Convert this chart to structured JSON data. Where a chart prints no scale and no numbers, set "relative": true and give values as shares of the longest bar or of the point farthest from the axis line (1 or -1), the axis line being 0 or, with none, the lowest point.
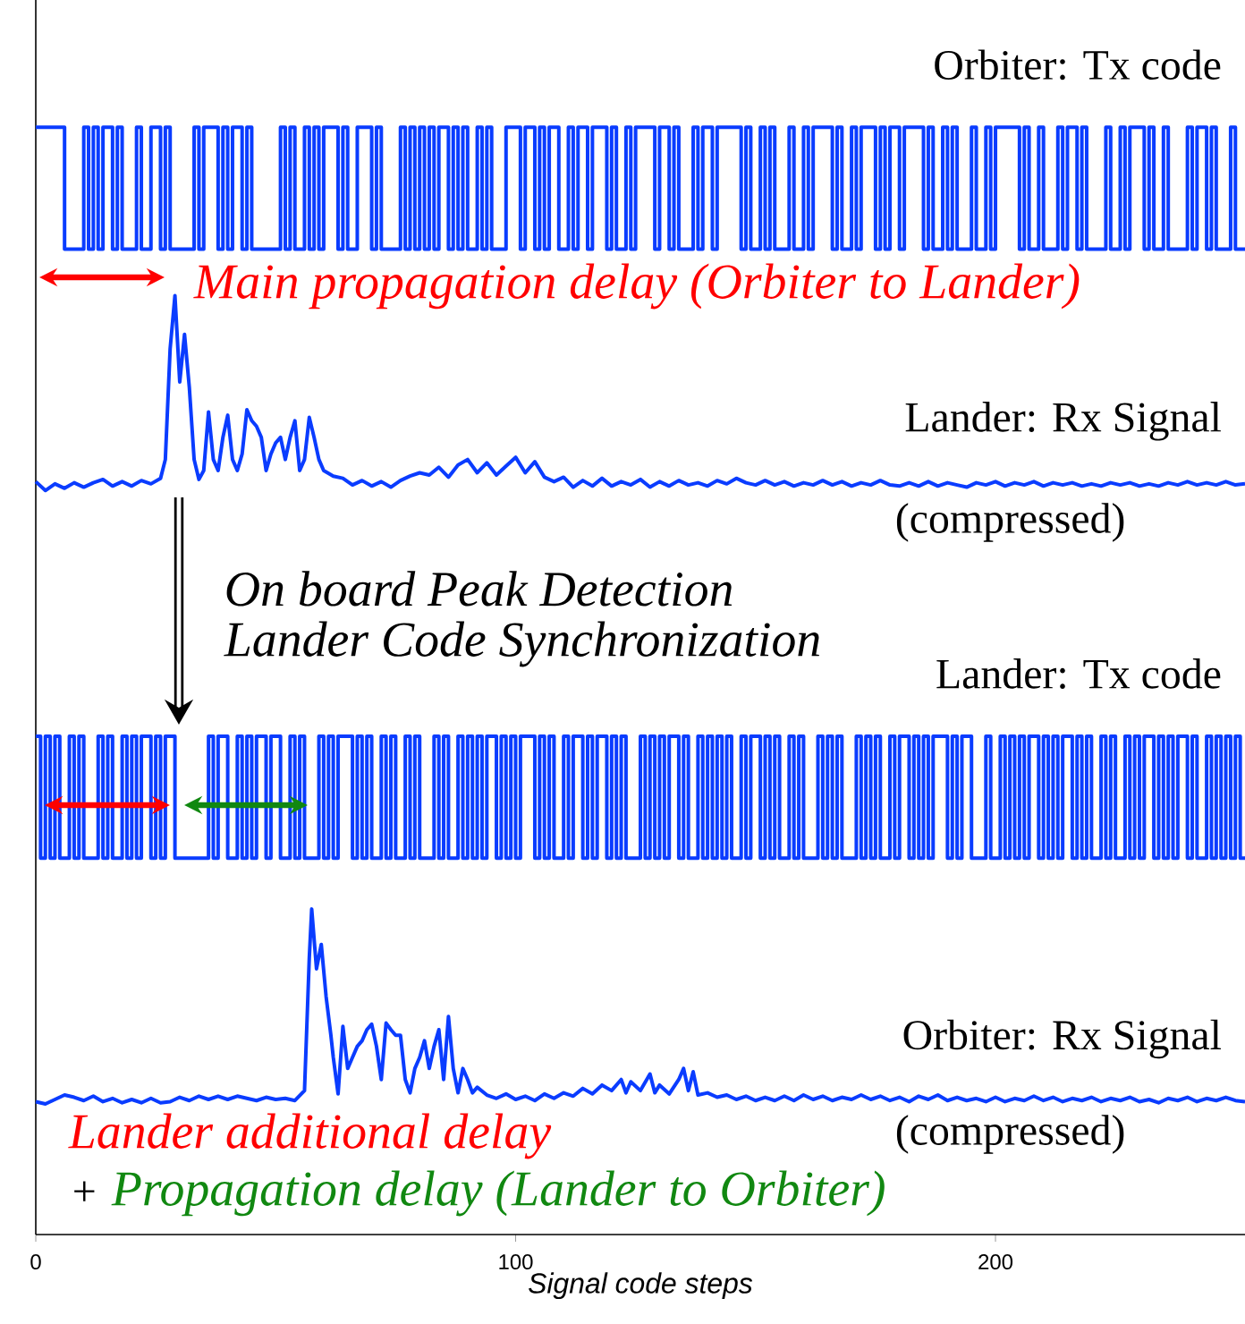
{
  "chart_data": {
    "type": "line",
    "relative": true,
    "xlabel": "Signal code steps",
    "xlim": [
      0,
      252
    ],
    "xticks": [
      0,
      100,
      200
    ],
    "marker": "none",
    "annotations": [
      "Main propagation delay (Orbiter to Lander)",
      "On board Peak Detection",
      "Lander Code Synchronization",
      "(compressed)",
      "(compressed)",
      "Lander additional delay",
      "+",
      "Propagation delay (Lander to Orbiter)"
    ],
    "series": [
      {
        "name": "Orbiter: Tx code",
        "type": "step",
        "color": "#0a3cff",
        "x": [
          0,
          6,
          10,
          11,
          12,
          13,
          14,
          16,
          17,
          18,
          21,
          22,
          24,
          26,
          27,
          28,
          33,
          34,
          35,
          38,
          39,
          40,
          41,
          43,
          44,
          45,
          51,
          52,
          53,
          54,
          56,
          57,
          58,
          59,
          60,
          63,
          64,
          65,
          67,
          70,
          71,
          72,
          76,
          77,
          78,
          79,
          80,
          81,
          82,
          83,
          84,
          86,
          87,
          88,
          89,
          90,
          92,
          93,
          94,
          95,
          98,
          101,
          102,
          104,
          105,
          106,
          107,
          109,
          111,
          112,
          113,
          115,
          116,
          119,
          120,
          121,
          123,
          124,
          125,
          129,
          130,
          132,
          133,
          134,
          137,
          138,
          139,
          141,
          142,
          147,
          148,
          149,
          151,
          152,
          153,
          154,
          157,
          158,
          160,
          161,
          162,
          166,
          167,
          168,
          170,
          171,
          172,
          175,
          176,
          177,
          178,
          180,
          181,
          185,
          186,
          187,
          189,
          190,
          191,
          192,
          195,
          196,
          198,
          199,
          200,
          205,
          206,
          207,
          209,
          210,
          213,
          214,
          215,
          217,
          218,
          219,
          223,
          224,
          226,
          227,
          228,
          231,
          232,
          233,
          235,
          236,
          240,
          241,
          242,
          244,
          245,
          246,
          249,
          250,
          252
        ],
        "values": [
          1,
          0.89,
          1,
          0.89,
          1,
          0.89,
          1,
          0.89,
          1,
          0.89,
          1,
          0.89,
          1,
          0.89,
          1,
          0.89,
          1,
          0.89,
          1,
          0.89,
          1,
          0.89,
          1,
          0.89,
          1,
          0.89,
          1,
          0.89,
          1,
          0.89,
          1,
          0.89,
          1,
          0.89,
          1,
          0.89,
          1,
          0.89,
          1,
          0.89,
          1,
          0.89,
          1,
          0.89,
          1,
          0.89,
          1,
          0.89,
          1,
          0.89,
          1,
          0.89,
          1,
          0.89,
          1,
          0.89,
          1,
          0.89,
          1,
          0.89,
          1,
          0.89,
          1,
          0.89,
          1,
          0.89,
          1,
          0.89,
          1,
          0.89,
          1,
          0.89,
          1,
          0.89,
          1,
          0.89,
          1,
          0.89,
          1,
          0.89,
          1,
          0.89,
          1,
          0.89,
          1,
          0.89,
          1,
          0.89,
          1,
          0.89,
          1,
          0.89,
          1,
          0.89,
          1,
          0.89,
          1,
          0.89,
          1,
          0.89,
          1,
          0.89,
          1,
          0.89,
          1,
          0.89,
          1,
          0.89,
          1,
          0.89,
          1,
          0.89,
          1,
          0.89,
          1,
          0.89,
          1,
          0.89,
          1,
          0.89,
          1,
          0.89,
          1,
          0.89,
          1,
          0.89,
          1,
          0.89,
          1,
          0.89,
          1,
          0.89,
          1,
          0.89,
          1,
          0.89,
          1,
          0.89,
          1,
          0.89,
          1,
          0.89,
          1,
          0.89,
          1,
          0.89,
          1,
          0.89,
          1,
          0.89,
          1,
          0.89,
          1,
          0.89,
          0.89
        ]
      },
      {
        "name": "Lander: Rx Signal",
        "color": "#0a3cff",
        "x": [
          0,
          2,
          4,
          6,
          8,
          10,
          12,
          14,
          16,
          18,
          20,
          22,
          24,
          26,
          27,
          28,
          29,
          30,
          31,
          32,
          33,
          34,
          35,
          36,
          37,
          38,
          39,
          40,
          41,
          42,
          43,
          44,
          45,
          46,
          47,
          48,
          49,
          50,
          51,
          52,
          53,
          54,
          55,
          56,
          57,
          58,
          59,
          60,
          62,
          64,
          66,
          68,
          70,
          72,
          74,
          76,
          78,
          80,
          82,
          84,
          86,
          88,
          90,
          92,
          94,
          96,
          98,
          100,
          102,
          104,
          106,
          108,
          110,
          112,
          114,
          116,
          118,
          120,
          122,
          124,
          126,
          128,
          130,
          132,
          134,
          136,
          138,
          140,
          142,
          144,
          146,
          148,
          150,
          152,
          154,
          156,
          158,
          160,
          162,
          164,
          166,
          168,
          170,
          172,
          174,
          176,
          178,
          180,
          182,
          184,
          186,
          188,
          190,
          192,
          194,
          196,
          198,
          200,
          202,
          204,
          206,
          208,
          210,
          212,
          214,
          216,
          218,
          220,
          222,
          224,
          226,
          228,
          230,
          232,
          234,
          236,
          238,
          240,
          242,
          244,
          246,
          248,
          250,
          252
        ],
        "values": [
          0.68,
          0.672,
          0.678,
          0.674,
          0.679,
          0.675,
          0.679,
          0.682,
          0.676,
          0.68,
          0.676,
          0.681,
          0.678,
          0.683,
          0.7,
          0.8,
          0.848,
          0.77,
          0.813,
          0.765,
          0.7,
          0.682,
          0.69,
          0.743,
          0.7,
          0.69,
          0.72,
          0.74,
          0.7,
          0.69,
          0.705,
          0.745,
          0.735,
          0.73,
          0.72,
          0.69,
          0.705,
          0.715,
          0.72,
          0.7,
          0.72,
          0.735,
          0.69,
          0.7,
          0.738,
          0.72,
          0.7,
          0.69,
          0.685,
          0.683,
          0.677,
          0.681,
          0.676,
          0.68,
          0.675,
          0.681,
          0.685,
          0.688,
          0.686,
          0.693,
          0.684,
          0.695,
          0.7,
          0.688,
          0.697,
          0.686,
          0.694,
          0.702,
          0.688,
          0.698,
          0.684,
          0.68,
          0.684,
          0.675,
          0.681,
          0.676,
          0.683,
          0.676,
          0.68,
          0.677,
          0.682,
          0.675,
          0.68,
          0.676,
          0.681,
          0.677,
          0.679,
          0.676,
          0.681,
          0.678,
          0.683,
          0.679,
          0.677,
          0.681,
          0.677,
          0.68,
          0.676,
          0.679,
          0.677,
          0.681,
          0.677,
          0.68,
          0.676,
          0.679,
          0.677,
          0.681,
          0.677,
          0.676,
          0.679,
          0.676,
          0.68,
          0.676,
          0.679,
          0.677,
          0.675,
          0.679,
          0.677,
          0.68,
          0.676,
          0.679,
          0.677,
          0.68,
          0.676,
          0.679,
          0.677,
          0.679,
          0.676,
          0.678,
          0.676,
          0.679,
          0.677,
          0.679,
          0.676,
          0.678,
          0.676,
          0.679,
          0.677,
          0.68,
          0.677,
          0.679,
          0.677,
          0.68,
          0.677,
          0.678
        ]
      },
      {
        "name": "Lander: Tx code",
        "type": "step",
        "color": "#0a3cff",
        "x": [
          0,
          1,
          2,
          3,
          4,
          5,
          7,
          8,
          9,
          10,
          13,
          14,
          15,
          16,
          18,
          19,
          20,
          21,
          22,
          24,
          25,
          26,
          27,
          29,
          36,
          37,
          38,
          40,
          42,
          43,
          44,
          45,
          46,
          48,
          49,
          51,
          53,
          54,
          55,
          56,
          59,
          60,
          61,
          62,
          63,
          66,
          67,
          68,
          69,
          70,
          72,
          73,
          74,
          75,
          77,
          78,
          79,
          80,
          83,
          84,
          85,
          86,
          88,
          89,
          90,
          91,
          92,
          93,
          94,
          96,
          97,
          98,
          99,
          100,
          101,
          104,
          105,
          106,
          107,
          108,
          110,
          111,
          112,
          114,
          115,
          116,
          117,
          119,
          120,
          121,
          122,
          123,
          126,
          127,
          128,
          129,
          130,
          131,
          132,
          134,
          135,
          136,
          138,
          139,
          140,
          141,
          142,
          143,
          144,
          145,
          147,
          148,
          149,
          151,
          152,
          153,
          154,
          155,
          157,
          158,
          159,
          160,
          163,
          164,
          165,
          166,
          167,
          168,
          171,
          172,
          173,
          174,
          175,
          176,
          178,
          179,
          180,
          182,
          183,
          184,
          185,
          186,
          187,
          190,
          191,
          192,
          193,
          195,
          198,
          199,
          201,
          202,
          203,
          204,
          205,
          206,
          207,
          209,
          210,
          211,
          212,
          213,
          214,
          216,
          217,
          218,
          219,
          220,
          222,
          223,
          224,
          225,
          227,
          228,
          229,
          230,
          231,
          233,
          234,
          235,
          236,
          237,
          238,
          240,
          241,
          242,
          244,
          245,
          246,
          247,
          248,
          249,
          250,
          251,
          252
        ],
        "values": [
          0.45,
          0.34,
          0.45,
          0.34,
          0.45,
          0.34,
          0.45,
          0.34,
          0.45,
          0.34,
          0.45,
          0.34,
          0.45,
          0.34,
          0.45,
          0.34,
          0.45,
          0.34,
          0.45,
          0.34,
          0.45,
          0.34,
          0.45,
          0.34,
          0.45,
          0.34,
          0.45,
          0.34,
          0.45,
          0.34,
          0.45,
          0.34,
          0.45,
          0.34,
          0.45,
          0.34,
          0.45,
          0.34,
          0.45,
          0.34,
          0.45,
          0.34,
          0.45,
          0.34,
          0.45,
          0.34,
          0.45,
          0.34,
          0.45,
          0.34,
          0.45,
          0.34,
          0.45,
          0.34,
          0.45,
          0.34,
          0.45,
          0.34,
          0.45,
          0.34,
          0.45,
          0.34,
          0.45,
          0.34,
          0.45,
          0.34,
          0.45,
          0.34,
          0.45,
          0.34,
          0.45,
          0.34,
          0.45,
          0.34,
          0.45,
          0.34,
          0.45,
          0.34,
          0.45,
          0.34,
          0.45,
          0.34,
          0.45,
          0.34,
          0.45,
          0.34,
          0.45,
          0.34,
          0.45,
          0.34,
          0.45,
          0.34,
          0.45,
          0.34,
          0.45,
          0.34,
          0.45,
          0.34,
          0.45,
          0.34,
          0.45,
          0.34,
          0.45,
          0.34,
          0.45,
          0.34,
          0.45,
          0.34,
          0.45,
          0.34,
          0.45,
          0.34,
          0.45,
          0.34,
          0.45,
          0.34,
          0.45,
          0.34,
          0.45,
          0.34,
          0.45,
          0.34,
          0.45,
          0.34,
          0.45,
          0.34,
          0.45,
          0.34,
          0.45,
          0.34,
          0.45,
          0.34,
          0.45,
          0.34,
          0.45,
          0.34,
          0.45,
          0.34,
          0.45,
          0.34,
          0.45,
          0.34,
          0.45,
          0.34,
          0.45,
          0.34,
          0.45,
          0.34,
          0.45,
          0.34,
          0.45,
          0.34,
          0.45,
          0.34,
          0.45,
          0.34,
          0.45,
          0.34,
          0.45,
          0.34,
          0.45,
          0.34,
          0.45,
          0.34,
          0.45,
          0.34,
          0.45,
          0.34,
          0.45,
          0.34,
          0.45,
          0.34,
          0.45,
          0.34,
          0.45,
          0.34,
          0.45,
          0.34,
          0.45,
          0.34,
          0.45,
          0.34,
          0.45,
          0.34,
          0.45,
          0.34,
          0.45,
          0.34,
          0.45,
          0.34,
          0.45,
          0.34,
          0.45,
          0.34,
          0.34
        ]
      },
      {
        "name": "Orbiter: Rx Signal",
        "color": "#0a3cff",
        "x": [
          0,
          2,
          4,
          6,
          8,
          10,
          12,
          14,
          16,
          18,
          20,
          22,
          24,
          26,
          28,
          30,
          32,
          34,
          36,
          38,
          40,
          42,
          44,
          46,
          48,
          50,
          52,
          54,
          56,
          57,
          57.5,
          58.5,
          59.5,
          60.5,
          61.5,
          62,
          63,
          64,
          65,
          66,
          67,
          68,
          69,
          70,
          71,
          72,
          73,
          74,
          75,
          76,
          77,
          78,
          79,
          80,
          81,
          82,
          83,
          84,
          85,
          86,
          87,
          88,
          89,
          90,
          91,
          92,
          94,
          96,
          98,
          100,
          102,
          104,
          106,
          108,
          110,
          112,
          114,
          116,
          118,
          120,
          122,
          123,
          124,
          126,
          128,
          129,
          130,
          132,
          134,
          135,
          136,
          137,
          138,
          140,
          142,
          144,
          146,
          148,
          150,
          152,
          154,
          156,
          158,
          160,
          162,
          164,
          166,
          168,
          170,
          172,
          174,
          176,
          178,
          180,
          182,
          184,
          186,
          188,
          190,
          192,
          194,
          196,
          198,
          200,
          202,
          204,
          206,
          208,
          210,
          212,
          214,
          216,
          218,
          220,
          222,
          224,
          226,
          228,
          230,
          232,
          234,
          236,
          238,
          240,
          242,
          244,
          246,
          248,
          250,
          252
        ],
        "values": [
          0.12,
          0.118,
          0.122,
          0.126,
          0.124,
          0.121,
          0.125,
          0.12,
          0.123,
          0.119,
          0.122,
          0.119,
          0.123,
          0.119,
          0.12,
          0.124,
          0.121,
          0.125,
          0.122,
          0.125,
          0.122,
          0.125,
          0.123,
          0.121,
          0.124,
          0.122,
          0.123,
          0.121,
          0.13,
          0.25,
          0.294,
          0.24,
          0.262,
          0.215,
          0.18,
          0.16,
          0.127,
          0.188,
          0.15,
          0.16,
          0.17,
          0.175,
          0.185,
          0.19,
          0.17,
          0.14,
          0.191,
          0.185,
          0.18,
          0.18,
          0.14,
          0.128,
          0.15,
          0.16,
          0.175,
          0.15,
          0.17,
          0.185,
          0.14,
          0.197,
          0.15,
          0.128,
          0.15,
          0.14,
          0.128,
          0.133,
          0.126,
          0.123,
          0.127,
          0.122,
          0.125,
          0.121,
          0.127,
          0.123,
          0.128,
          0.125,
          0.132,
          0.127,
          0.135,
          0.13,
          0.14,
          0.128,
          0.138,
          0.13,
          0.145,
          0.128,
          0.135,
          0.127,
          0.14,
          0.15,
          0.13,
          0.147,
          0.126,
          0.128,
          0.124,
          0.126,
          0.122,
          0.125,
          0.121,
          0.124,
          0.121,
          0.125,
          0.121,
          0.126,
          0.122,
          0.125,
          0.121,
          0.124,
          0.122,
          0.126,
          0.122,
          0.125,
          0.121,
          0.124,
          0.12,
          0.125,
          0.122,
          0.126,
          0.121,
          0.124,
          0.121,
          0.123,
          0.12,
          0.124,
          0.12,
          0.123,
          0.121,
          0.125,
          0.121,
          0.124,
          0.12,
          0.123,
          0.121,
          0.124,
          0.12,
          0.123,
          0.121,
          0.124,
          0.12,
          0.122,
          0.119,
          0.123,
          0.121,
          0.124,
          0.12,
          0.123,
          0.121,
          0.124,
          0.121,
          0.12
        ]
      }
    ]
  }
}
